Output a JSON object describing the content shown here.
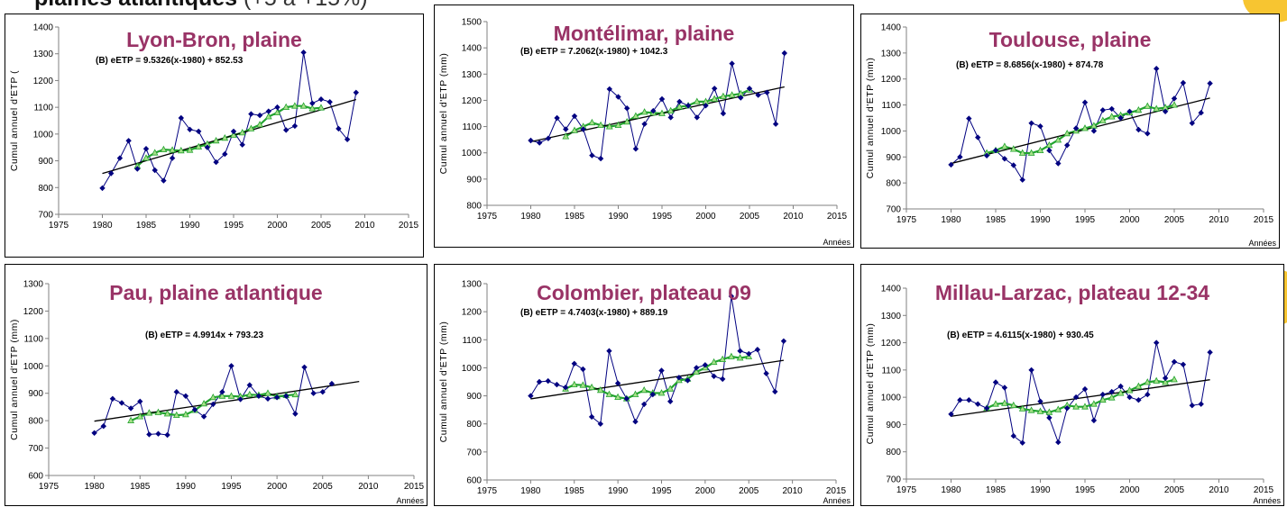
{
  "page": {
    "header_bold": "plaines atlantiques",
    "header_rest": " (+5 à +15%)",
    "colors": {
      "accent": "#f7c531",
      "title": "#993366",
      "annual": "#000080",
      "moving_avg": "#22a32f",
      "trend": "#000000"
    }
  },
  "chart_data": [
    {
      "type": "line",
      "title": "Lyon-Bron, plaine",
      "equation": "(B) eETP = 9.5326(x-1980) + 852.53",
      "ylabel": "Cumul annuel d'ETP  (",
      "xlabel": "",
      "x_ticks": [
        1975,
        1980,
        1985,
        1990,
        1995,
        2000,
        2005,
        2010,
        2015
      ],
      "xlim": [
        1975,
        2015
      ],
      "ylim": [
        700,
        1400
      ],
      "y_ticks": [
        700,
        800,
        900,
        1000,
        1100,
        1200,
        1300,
        1400
      ],
      "trend": {
        "slope": 9.5326,
        "intercept": 852.53,
        "x0": 1980,
        "from": 1980,
        "to": 2009
      },
      "series": [
        {
          "role": "annual",
          "x": [
            1980,
            1981,
            1982,
            1983,
            1984,
            1985,
            1986,
            1987,
            1988,
            1989,
            1990,
            1991,
            1992,
            1993,
            1994,
            1995,
            1996,
            1997,
            1998,
            1999,
            2000,
            2001,
            2002,
            2003,
            2004,
            2005,
            2006,
            2007,
            2008,
            2009
          ],
          "values": [
            798,
            853,
            910,
            975,
            870,
            945,
            865,
            826,
            910,
            1060,
            1017,
            1010,
            950,
            895,
            925,
            1010,
            960,
            1075,
            1070,
            1085,
            1100,
            1015,
            1030,
            1305,
            1115,
            1130,
            1120,
            1020,
            980,
            1155
          ]
        },
        {
          "role": "moving_avg",
          "x": [
            1984,
            1985,
            1986,
            1987,
            1988,
            1989,
            1990,
            1991,
            1992,
            1993,
            1994,
            1995,
            1996,
            1997,
            1998,
            1999,
            2000,
            2001,
            2002,
            2003,
            2004,
            2005
          ],
          "values": [
            880,
            910,
            930,
            942,
            940,
            938,
            940,
            952,
            962,
            975,
            985,
            996,
            1005,
            1020,
            1035,
            1065,
            1080,
            1100,
            1105,
            1105,
            1095,
            1098
          ]
        }
      ]
    },
    {
      "type": "line",
      "title": "Montélimar, plaine",
      "equation": "(B) eETP = 7.2062(x-1980) + 1042.3",
      "ylabel": "Cumul annuel d'ETP  (mm)",
      "xlabel": "Années",
      "x_ticks": [
        1975,
        1980,
        1985,
        1990,
        1995,
        2000,
        2005,
        2010,
        2015
      ],
      "xlim": [
        1975,
        2015
      ],
      "ylim": [
        800,
        1500
      ],
      "y_ticks": [
        800,
        900,
        1000,
        1100,
        1200,
        1300,
        1400,
        1500
      ],
      "trend": {
        "slope": 7.2062,
        "intercept": 1042.3,
        "x0": 1980,
        "from": 1980,
        "to": 2009
      },
      "series": [
        {
          "role": "annual",
          "x": [
            1980,
            1981,
            1982,
            1983,
            1984,
            1985,
            1986,
            1987,
            1988,
            1989,
            1990,
            1991,
            1992,
            1993,
            1994,
            1995,
            1996,
            1997,
            1998,
            1999,
            2000,
            2001,
            2002,
            2003,
            2004,
            2005,
            2006,
            2007,
            2008,
            2009
          ],
          "values": [
            1047,
            1038,
            1055,
            1133,
            1090,
            1140,
            1090,
            990,
            978,
            1243,
            1213,
            1170,
            1015,
            1110,
            1160,
            1205,
            1135,
            1195,
            1180,
            1135,
            1180,
            1245,
            1150,
            1340,
            1210,
            1245,
            1220,
            1230,
            1110,
            1380
          ]
        },
        {
          "role": "moving_avg",
          "x": [
            1984,
            1985,
            1986,
            1987,
            1988,
            1989,
            1990,
            1991,
            1992,
            1993,
            1994,
            1995,
            1996,
            1997,
            1998,
            1999,
            2000,
            2001,
            2002,
            2003,
            2004,
            2005
          ],
          "values": [
            1062,
            1085,
            1100,
            1115,
            1105,
            1100,
            1105,
            1118,
            1140,
            1155,
            1152,
            1150,
            1160,
            1175,
            1180,
            1195,
            1195,
            1205,
            1215,
            1220,
            1225,
            1240
          ]
        }
      ]
    },
    {
      "type": "line",
      "title": "Toulouse, plaine",
      "equation": "(B) eETP = 8.6856(x-1980) + 874.78",
      "ylabel": "Cumul annuel d'ETP  (mm)",
      "xlabel": "Années",
      "x_ticks": [
        1975,
        1980,
        1985,
        1990,
        1995,
        2000,
        2005,
        2010,
        2015
      ],
      "xlim": [
        1975,
        2015
      ],
      "ylim": [
        700,
        1400
      ],
      "y_ticks": [
        700,
        800,
        900,
        1000,
        1100,
        1200,
        1300,
        1400
      ],
      "trend": {
        "slope": 8.6856,
        "intercept": 874.78,
        "x0": 1980,
        "from": 1980,
        "to": 2009
      },
      "series": [
        {
          "role": "annual",
          "x": [
            1980,
            1981,
            1982,
            1983,
            1984,
            1985,
            1986,
            1987,
            1988,
            1989,
            1990,
            1991,
            1992,
            1993,
            1994,
            1995,
            1996,
            1997,
            1998,
            1999,
            2000,
            2001,
            2002,
            2003,
            2004,
            2005,
            2006,
            2007,
            2008,
            2009
          ],
          "values": [
            870,
            900,
            1048,
            975,
            905,
            925,
            893,
            868,
            812,
            1030,
            1018,
            925,
            875,
            945,
            1010,
            1110,
            1000,
            1080,
            1085,
            1050,
            1075,
            1005,
            990,
            1240,
            1075,
            1125,
            1185,
            1030,
            1070,
            1183
          ]
        },
        {
          "role": "moving_avg",
          "x": [
            1984,
            1985,
            1986,
            1987,
            1988,
            1989,
            1990,
            1991,
            1992,
            1993,
            1994,
            1995,
            1996,
            1997,
            1998,
            1999,
            2000,
            2001,
            2002,
            2003,
            2004,
            2005
          ],
          "values": [
            915,
            925,
            940,
            930,
            915,
            915,
            925,
            945,
            965,
            990,
            1000,
            1010,
            1020,
            1040,
            1055,
            1060,
            1070,
            1080,
            1095,
            1085,
            1090,
            1100
          ]
        }
      ]
    },
    {
      "type": "line",
      "title": "Pau, plaine atlantique",
      "equation": "(B) eETP = 4.9914x + 793.23",
      "ylabel": "Cumul annuel d'ETP  (mm)",
      "xlabel": "Années",
      "x_ticks": [
        1975,
        1980,
        1985,
        1990,
        1995,
        2000,
        2005,
        2010,
        2015
      ],
      "xlim": [
        1975,
        2015
      ],
      "ylim": [
        600,
        1300
      ],
      "y_ticks": [
        600,
        700,
        800,
        900,
        1000,
        1100,
        1200,
        1300
      ],
      "trend": {
        "slope": 4.9914,
        "intercept": 798.2,
        "x0": 1980,
        "from": 1980,
        "to": 2009
      },
      "series": [
        {
          "role": "annual",
          "x": [
            1980,
            1981,
            1982,
            1983,
            1984,
            1985,
            1986,
            1987,
            1988,
            1989,
            1990,
            1991,
            1992,
            1993,
            1994,
            1995,
            1996,
            1997,
            1998,
            1999,
            2000,
            2001,
            2002,
            2003,
            2004,
            2005,
            2006
          ],
          "values": [
            755,
            780,
            880,
            865,
            845,
            870,
            750,
            752,
            748,
            905,
            890,
            840,
            815,
            860,
            905,
            1000,
            878,
            930,
            890,
            880,
            885,
            890,
            825,
            995,
            900,
            905,
            935
          ]
        },
        {
          "role": "moving_avg",
          "x": [
            1984,
            1985,
            1986,
            1987,
            1988,
            1989,
            1990,
            1991,
            1992,
            1993,
            1994,
            1995,
            1996,
            1997,
            1998,
            1999,
            2000,
            2001,
            2002
          ],
          "values": [
            800,
            815,
            828,
            830,
            825,
            820,
            822,
            838,
            862,
            885,
            890,
            890,
            888,
            895,
            893,
            900,
            888,
            892,
            895
          ]
        }
      ]
    },
    {
      "type": "line",
      "title": "Colombier, plateau 09",
      "equation": "(B) eETP = 4.7403(x-1980) + 889.19",
      "ylabel": "Cumul annuel d'ETP  (mm)",
      "xlabel": "Années",
      "x_ticks": [
        1975,
        1980,
        1985,
        1990,
        1995,
        2000,
        2005,
        2010,
        2015
      ],
      "xlim": [
        1975,
        2015
      ],
      "ylim": [
        600,
        1300
      ],
      "y_ticks": [
        600,
        700,
        800,
        900,
        1000,
        1100,
        1200,
        1300
      ],
      "trend": {
        "slope": 4.7403,
        "intercept": 889.19,
        "x0": 1980,
        "from": 1980,
        "to": 2009
      },
      "series": [
        {
          "role": "annual",
          "x": [
            1980,
            1981,
            1982,
            1983,
            1984,
            1985,
            1986,
            1987,
            1988,
            1989,
            1990,
            1991,
            1992,
            1993,
            1994,
            1995,
            1996,
            1997,
            1998,
            1999,
            2000,
            2001,
            2002,
            2003,
            2004,
            2005,
            2006,
            2007,
            2008,
            2009
          ],
          "values": [
            900,
            950,
            953,
            940,
            930,
            1015,
            995,
            825,
            800,
            1060,
            945,
            890,
            808,
            870,
            905,
            990,
            880,
            965,
            955,
            1000,
            1010,
            970,
            960,
            1255,
            1060,
            1050,
            1065,
            980,
            915,
            1095
          ]
        },
        {
          "role": "moving_avg",
          "x": [
            1984,
            1985,
            1986,
            1987,
            1988,
            1989,
            1990,
            1991,
            1992,
            1993,
            1994,
            1995,
            1996,
            1997,
            1998,
            1999,
            2000,
            2001,
            2002,
            2003,
            2004,
            2005
          ],
          "values": [
            925,
            940,
            938,
            930,
            920,
            905,
            895,
            890,
            905,
            920,
            910,
            910,
            925,
            955,
            960,
            985,
            1000,
            1020,
            1030,
            1040,
            1035,
            1040
          ]
        }
      ]
    },
    {
      "type": "line",
      "title": "Millau-Larzac, plateau 12-34",
      "equation": "(B) eETP = 4.6115(x-1980) + 930.45",
      "ylabel": "Cumul annuel d'ETP  (mm)",
      "xlabel": "Années",
      "x_ticks": [
        1975,
        1980,
        1985,
        1990,
        1995,
        2000,
        2005,
        2010,
        2015
      ],
      "xlim": [
        1975,
        2015
      ],
      "ylim": [
        700,
        1400
      ],
      "y_ticks": [
        700,
        800,
        900,
        1000,
        1100,
        1200,
        1300,
        1400
      ],
      "trend": {
        "slope": 4.6115,
        "intercept": 930.45,
        "x0": 1980,
        "from": 1980,
        "to": 2009
      },
      "series": [
        {
          "role": "annual",
          "x": [
            1980,
            1981,
            1982,
            1983,
            1984,
            1985,
            1986,
            1987,
            1988,
            1989,
            1990,
            1991,
            1992,
            1993,
            1994,
            1995,
            1996,
            1997,
            1998,
            1999,
            2000,
            2001,
            2002,
            2003,
            2004,
            2005,
            2006,
            2007,
            2008,
            2009
          ],
          "values": [
            938,
            990,
            990,
            975,
            960,
            1055,
            1035,
            858,
            833,
            1100,
            985,
            925,
            835,
            960,
            1000,
            1030,
            915,
            1010,
            1020,
            1040,
            1000,
            990,
            1010,
            1200,
            1070,
            1130,
            1120,
            970,
            975,
            1165
          ]
        },
        {
          "role": "moving_avg",
          "x": [
            1984,
            1985,
            1986,
            1987,
            1988,
            1989,
            1990,
            1991,
            1992,
            1993,
            1994,
            1995,
            1996,
            1997,
            1998,
            1999,
            2000,
            2001,
            2002,
            2003,
            2004,
            2005
          ],
          "values": [
            960,
            975,
            978,
            970,
            958,
            952,
            948,
            945,
            955,
            970,
            965,
            965,
            975,
            990,
            998,
            1015,
            1025,
            1040,
            1055,
            1060,
            1055,
            1065
          ]
        }
      ]
    }
  ]
}
